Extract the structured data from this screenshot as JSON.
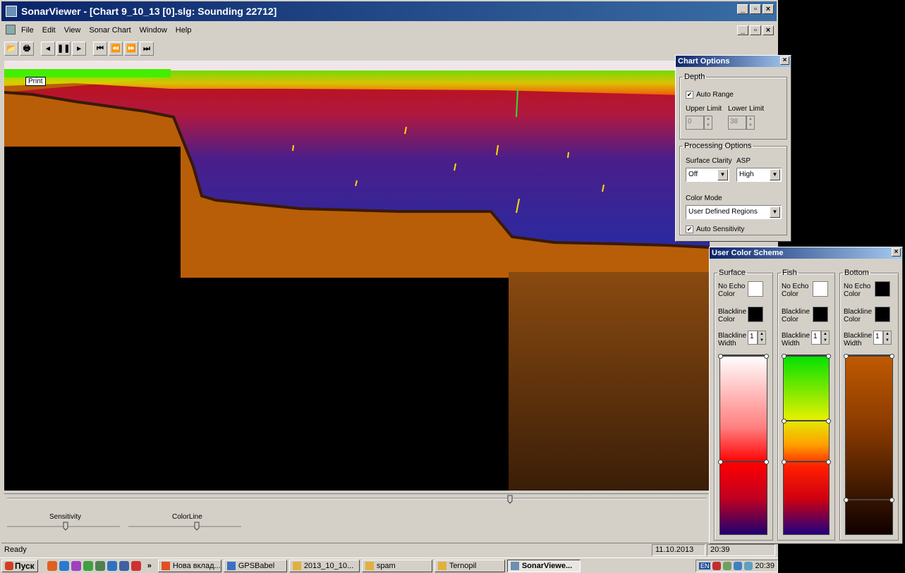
{
  "window": {
    "title": "SonarViewer - [Chart 9_10_13 [0].slg: Sounding 22712]"
  },
  "menu": [
    "File",
    "Edit",
    "View",
    "Sonar Chart",
    "Window",
    "Help"
  ],
  "chart": {
    "print_label": "Print"
  },
  "controls": {
    "sensitivity_label": "Sensitivity",
    "colorline_label": "ColorLine"
  },
  "status": {
    "text": "Ready",
    "date": "11.10.2013",
    "time": "20:39"
  },
  "chart_options": {
    "title": "Chart Options",
    "depth_legend": "Depth",
    "auto_range_label": "Auto Range",
    "auto_range_checked": true,
    "upper_limit_label": "Upper Limit",
    "lower_limit_label": "Lower Limit",
    "upper_limit_value": "0",
    "lower_limit_value": "38",
    "processing_legend": "Processing Options",
    "surface_clarity_label": "Surface Clarity",
    "asp_label": "ASP",
    "surface_clarity_value": "Off",
    "asp_value": "High",
    "color_mode_label": "Color Mode",
    "color_mode_value": "User Defined Regions",
    "auto_sensitivity_label": "Auto Sensitivity",
    "auto_sensitivity_checked": true
  },
  "color_scheme": {
    "title": "User Color Scheme",
    "no_echo_label_1": "No Echo",
    "no_echo_label_2": "Color",
    "blackline_label_1": "Blackline",
    "blackline_color_label_2": "Color",
    "blackline_width_label_2": "Width",
    "sections": [
      {
        "name": "Surface",
        "no_echo_color": "#ffffff",
        "blackline_color": "#000000",
        "blackline_width": "1"
      },
      {
        "name": "Fish",
        "no_echo_color": "#ffffff",
        "blackline_color": "#000000",
        "blackline_width": "1"
      },
      {
        "name": "Bottom",
        "no_echo_color": "#000000",
        "blackline_color": "#000000",
        "blackline_width": "1"
      }
    ]
  },
  "taskbar": {
    "start_label": "Пуск",
    "more_label": "»",
    "tasks": [
      {
        "label": "Нова вклад...",
        "color": "#e05020"
      },
      {
        "label": "GPSBabel",
        "color": "#3a70c0"
      },
      {
        "label": "2013_10_10...",
        "color": "#e0b040"
      },
      {
        "label": "spam",
        "color": "#e0b040"
      },
      {
        "label": "Ternopil",
        "color": "#e0b040"
      },
      {
        "label": "SonarViewe...",
        "color": "#6d8fb3"
      }
    ],
    "lang": "EN",
    "clock": "20:39"
  }
}
